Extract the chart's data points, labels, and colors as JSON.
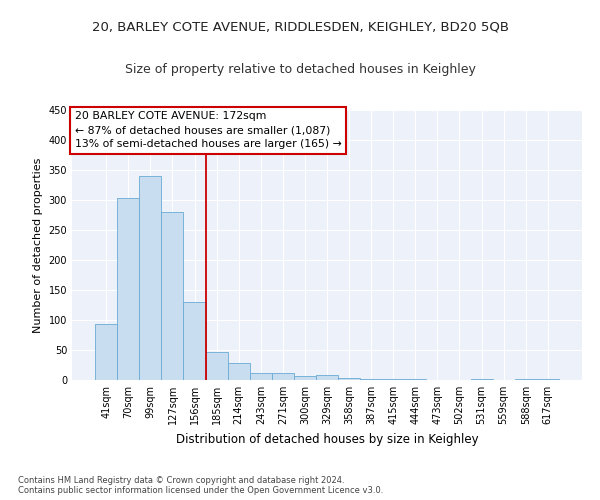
{
  "title": "20, BARLEY COTE AVENUE, RIDDLESDEN, KEIGHLEY, BD20 5QB",
  "subtitle": "Size of property relative to detached houses in Keighley",
  "xlabel": "Distribution of detached houses by size in Keighley",
  "ylabel": "Number of detached properties",
  "categories": [
    "41sqm",
    "70sqm",
    "99sqm",
    "127sqm",
    "156sqm",
    "185sqm",
    "214sqm",
    "243sqm",
    "271sqm",
    "300sqm",
    "329sqm",
    "358sqm",
    "387sqm",
    "415sqm",
    "444sqm",
    "473sqm",
    "502sqm",
    "531sqm",
    "559sqm",
    "588sqm",
    "617sqm"
  ],
  "values": [
    93,
    303,
    340,
    280,
    130,
    46,
    29,
    11,
    11,
    6,
    9,
    3,
    1,
    1,
    1,
    0,
    0,
    1,
    0,
    1,
    1
  ],
  "bar_color": "#c9ddf0",
  "bar_edge_color": "#6aaad4",
  "vline_x": 4.5,
  "vline_color": "#cc0000",
  "annotation_text": "20 BARLEY COTE AVENUE: 172sqm\n← 87% of detached houses are smaller (1,087)\n13% of semi-detached houses are larger (165) →",
  "annotation_box_color": "#cc0000",
  "ylim": [
    0,
    450
  ],
  "yticks": [
    0,
    50,
    100,
    150,
    200,
    250,
    300,
    350,
    400,
    450
  ],
  "footer_text": "Contains HM Land Registry data © Crown copyright and database right 2024.\nContains public sector information licensed under the Open Government Licence v3.0.",
  "bg_color": "#edf2fa",
  "grid_color": "#ffffff",
  "title_fontsize": 9.5,
  "subtitle_fontsize": 9,
  "tick_fontsize": 7,
  "ylabel_fontsize": 8,
  "xlabel_fontsize": 8.5,
  "annotation_fontsize": 7.8,
  "footer_fontsize": 6
}
